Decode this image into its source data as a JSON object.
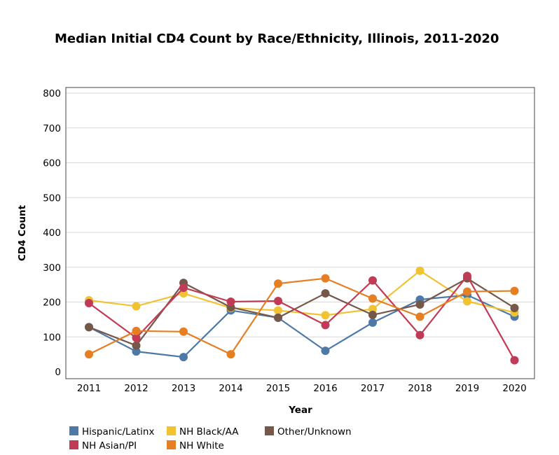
{
  "chart_data": {
    "type": "line",
    "title": "Median Initial CD4 Count by Race/Ethnicity, Illinois, 2011-2020",
    "xlabel": "Year",
    "ylabel": "CD4 Count",
    "ylim": [
      0,
      800
    ],
    "yticks": [
      "0",
      "100",
      "200",
      "300",
      "400",
      "500",
      "600",
      "700",
      "800"
    ],
    "categories": [
      "2011",
      "2012",
      "2013",
      "2014",
      "2015",
      "2016",
      "2017",
      "2018",
      "2019",
      "2020"
    ],
    "grid": true,
    "legend_position": "bottom-left",
    "series": [
      {
        "name": "Hispanic/Latinx",
        "color": "#4e79a7",
        "values": [
          128,
          58,
          42,
          176,
          155,
          60,
          141,
          207,
          220,
          158
        ]
      },
      {
        "name": "NH Black/AA",
        "color": "#f1c232",
        "values": [
          205,
          188,
          225,
          183,
          176,
          162,
          180,
          290,
          202,
          170
        ]
      },
      {
        "name": "Other/Unknown",
        "color": "#76584a",
        "values": [
          128,
          75,
          255,
          185,
          155,
          225,
          163,
          193,
          268,
          183
        ]
      },
      {
        "name": "NH Asian/PI",
        "color": "#c23b56",
        "values": [
          197,
          97,
          241,
          201,
          203,
          134,
          262,
          105,
          275,
          33
        ]
      },
      {
        "name": "NH White",
        "color": "#e67e22",
        "values": [
          50,
          117,
          115,
          50,
          253,
          268,
          210,
          158,
          230,
          232
        ]
      }
    ]
  }
}
